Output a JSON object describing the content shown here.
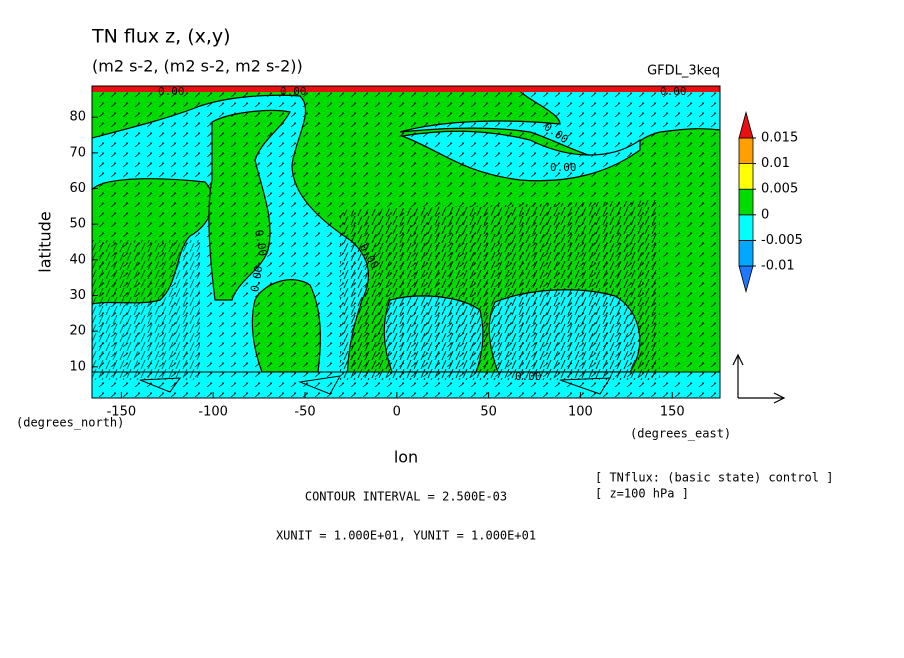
{
  "chart_data": {
    "type": "contour",
    "title": "TN flux z, (x,y)",
    "subtitle": "(m2 s-2, (m2 s-2, m2 s-2))",
    "dataset": "GFDL_3keq",
    "x_label": "lon",
    "y_label": "latitude",
    "x_units": "(degrees_east)",
    "y_units": "(degrees_north)",
    "xlim": [
      -166,
      176
    ],
    "ylim": [
      1.25,
      88.75
    ],
    "xticks": [
      -150,
      -100,
      -50,
      0,
      50,
      100,
      150
    ],
    "yticks": [
      10,
      20,
      30,
      40,
      50,
      60,
      70,
      80
    ],
    "levels": [
      -0.01,
      -0.005,
      0,
      0.005,
      0.01,
      0.015
    ],
    "level_labels": [
      "-0.01",
      "-0.005",
      "0",
      "0.005",
      "0.01",
      "0.015"
    ],
    "colors": [
      "#1e78ff",
      "#00a8ff",
      "#00ffff",
      "#00dc00",
      "#ffff00",
      "#ffa000",
      "#e81010"
    ],
    "contour_labels": [
      "0.00",
      "0.00",
      "0.00",
      "0.00",
      "0.00",
      "0.00",
      "0.00",
      "0.00",
      "0.00"
    ],
    "notes": [
      "[ TNflux: (basic state) control ]",
      "[ z=100 hPa ]"
    ],
    "contour_interval": "CONTOUR INTERVAL = 2.500E-03",
    "vector_units": "XUNIT = 1.000E+01, YUNIT = 1.000E+01"
  }
}
